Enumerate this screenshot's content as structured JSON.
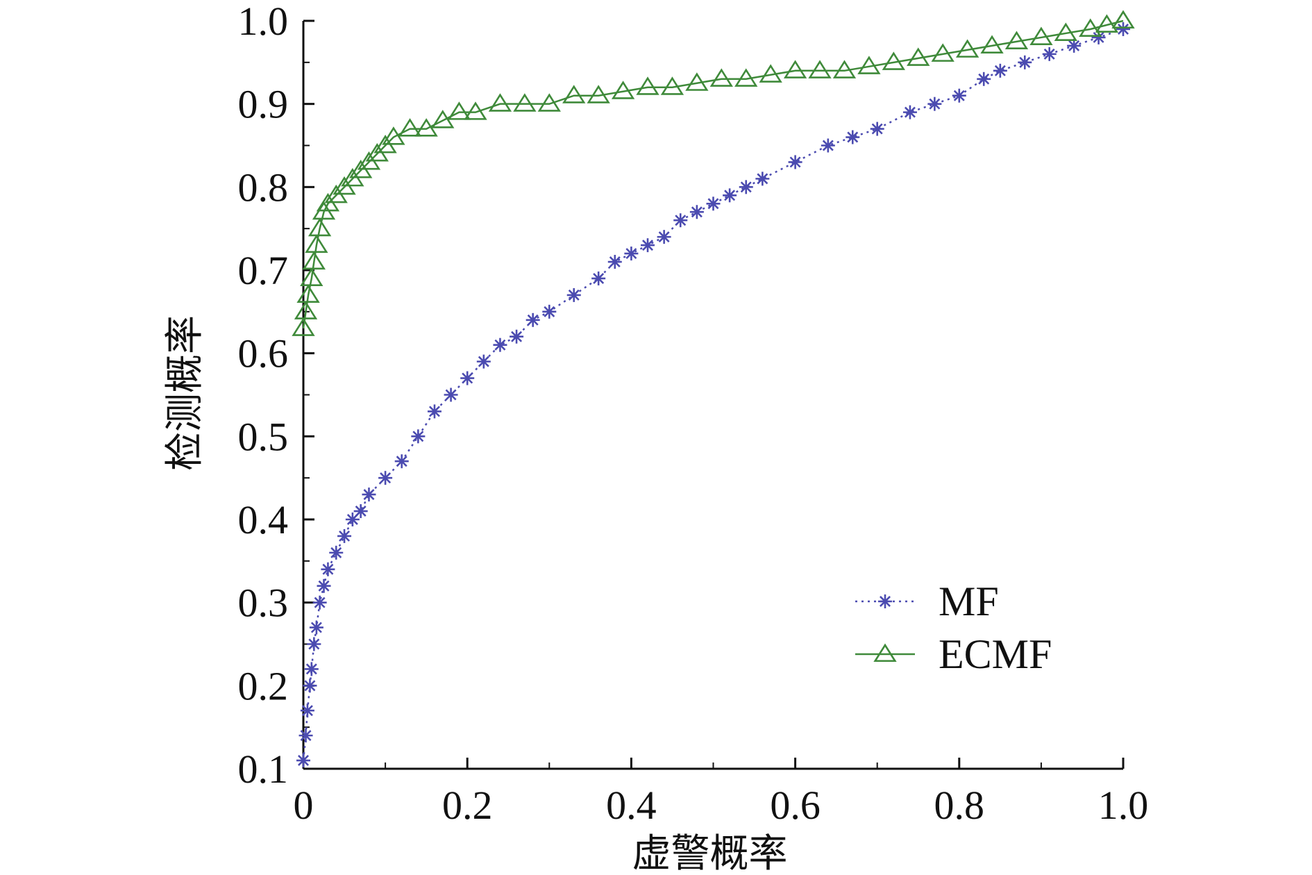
{
  "chart_data": {
    "type": "line",
    "title": "",
    "xlabel": "虚警概率",
    "ylabel": "检测概率",
    "xlim": [
      0,
      1
    ],
    "ylim": [
      0.1,
      1
    ],
    "xticks": [
      0,
      0.2,
      0.4,
      0.6,
      0.8,
      1.0
    ],
    "xtick_labels": [
      "0",
      "0.2",
      "0.4",
      "0.6",
      "0.8",
      "1.0"
    ],
    "yticks": [
      0.1,
      0.2,
      0.3,
      0.4,
      0.5,
      0.6,
      0.7,
      0.8,
      0.9,
      1.0
    ],
    "ytick_labels": [
      "0.1",
      "0.2",
      "0.3",
      "0.4",
      "0.5",
      "0.6",
      "0.7",
      "0.8",
      "0.9",
      "1.0"
    ],
    "grid": false,
    "legend_position": "bottom-right",
    "series": [
      {
        "name": "MF",
        "color": "#4b4bb0",
        "marker": "asterisk",
        "line_style": "dotted",
        "x": [
          0.0,
          0.003,
          0.005,
          0.008,
          0.01,
          0.013,
          0.016,
          0.02,
          0.025,
          0.03,
          0.04,
          0.05,
          0.06,
          0.07,
          0.08,
          0.1,
          0.12,
          0.14,
          0.16,
          0.18,
          0.2,
          0.22,
          0.24,
          0.26,
          0.28,
          0.3,
          0.33,
          0.36,
          0.38,
          0.4,
          0.42,
          0.44,
          0.46,
          0.48,
          0.5,
          0.52,
          0.54,
          0.56,
          0.6,
          0.64,
          0.67,
          0.7,
          0.74,
          0.77,
          0.8,
          0.83,
          0.85,
          0.88,
          0.91,
          0.94,
          0.97,
          1.0
        ],
        "y": [
          0.11,
          0.14,
          0.17,
          0.2,
          0.22,
          0.25,
          0.27,
          0.3,
          0.32,
          0.34,
          0.36,
          0.38,
          0.4,
          0.41,
          0.43,
          0.45,
          0.47,
          0.5,
          0.53,
          0.55,
          0.57,
          0.59,
          0.61,
          0.62,
          0.64,
          0.65,
          0.67,
          0.69,
          0.71,
          0.72,
          0.73,
          0.74,
          0.76,
          0.77,
          0.78,
          0.79,
          0.8,
          0.81,
          0.83,
          0.85,
          0.86,
          0.87,
          0.89,
          0.9,
          0.91,
          0.93,
          0.94,
          0.95,
          0.96,
          0.97,
          0.98,
          0.99
        ]
      },
      {
        "name": "ECMF",
        "color": "#3f8a3a",
        "marker": "triangle",
        "line_style": "solid",
        "x": [
          0.0,
          0.003,
          0.006,
          0.01,
          0.013,
          0.016,
          0.02,
          0.025,
          0.03,
          0.04,
          0.05,
          0.06,
          0.07,
          0.08,
          0.09,
          0.1,
          0.11,
          0.13,
          0.15,
          0.17,
          0.19,
          0.21,
          0.24,
          0.27,
          0.3,
          0.33,
          0.36,
          0.39,
          0.42,
          0.45,
          0.48,
          0.51,
          0.54,
          0.57,
          0.6,
          0.63,
          0.66,
          0.69,
          0.72,
          0.75,
          0.78,
          0.81,
          0.84,
          0.87,
          0.9,
          0.93,
          0.96,
          0.98,
          1.0
        ],
        "y": [
          0.63,
          0.65,
          0.67,
          0.69,
          0.71,
          0.73,
          0.75,
          0.77,
          0.78,
          0.79,
          0.8,
          0.81,
          0.82,
          0.83,
          0.84,
          0.85,
          0.86,
          0.87,
          0.87,
          0.88,
          0.89,
          0.89,
          0.9,
          0.9,
          0.9,
          0.91,
          0.91,
          0.915,
          0.92,
          0.92,
          0.925,
          0.93,
          0.93,
          0.935,
          0.94,
          0.94,
          0.94,
          0.945,
          0.95,
          0.955,
          0.96,
          0.965,
          0.97,
          0.975,
          0.98,
          0.985,
          0.99,
          0.995,
          1.0
        ]
      }
    ]
  }
}
